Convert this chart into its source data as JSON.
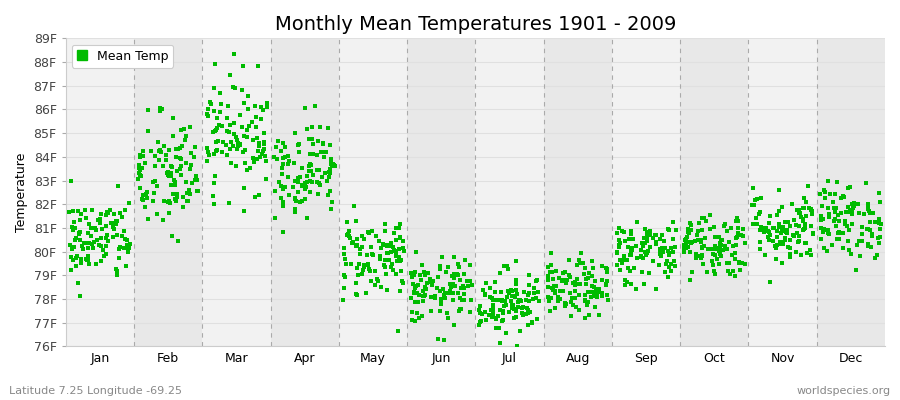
{
  "title": "Monthly Mean Temperatures 1901 - 2009",
  "ylabel": "Temperature",
  "ylim": [
    76,
    89
  ],
  "yticks": [
    76,
    77,
    78,
    79,
    80,
    81,
    82,
    83,
    84,
    85,
    86,
    87,
    88,
    89
  ],
  "ytick_labels": [
    "76F",
    "77F",
    "78F",
    "79F",
    "80F",
    "81F",
    "82F",
    "83F",
    "84F",
    "85F",
    "86F",
    "87F",
    "88F",
    "89F"
  ],
  "months": [
    "Jan",
    "Feb",
    "Mar",
    "Apr",
    "May",
    "Jun",
    "Jul",
    "Aug",
    "Sep",
    "Oct",
    "Nov",
    "Dec"
  ],
  "month_means": [
    80.5,
    83.2,
    85.0,
    83.5,
    79.8,
    78.3,
    77.9,
    78.4,
    80.0,
    80.3,
    81.0,
    81.3
  ],
  "month_stds": [
    0.9,
    1.3,
    1.2,
    1.0,
    0.9,
    0.7,
    0.7,
    0.6,
    0.7,
    0.7,
    0.8,
    0.8
  ],
  "n_years": 109,
  "dot_color": "#00bb00",
  "dot_size": 5,
  "fig_bg": "#ffffff",
  "plot_bg": "#ffffff",
  "band_color_odd": "#f2f2f2",
  "band_color_even": "#e8e8e8",
  "grid_color": "#e0e0e0",
  "dash_color": "#aaaaaa",
  "legend_label": "Mean Temp",
  "footer_left": "Latitude 7.25 Longitude -69.25",
  "footer_right": "worldspecies.org",
  "title_fontsize": 14,
  "axis_label_fontsize": 9,
  "tick_fontsize": 9,
  "footer_fontsize": 8
}
